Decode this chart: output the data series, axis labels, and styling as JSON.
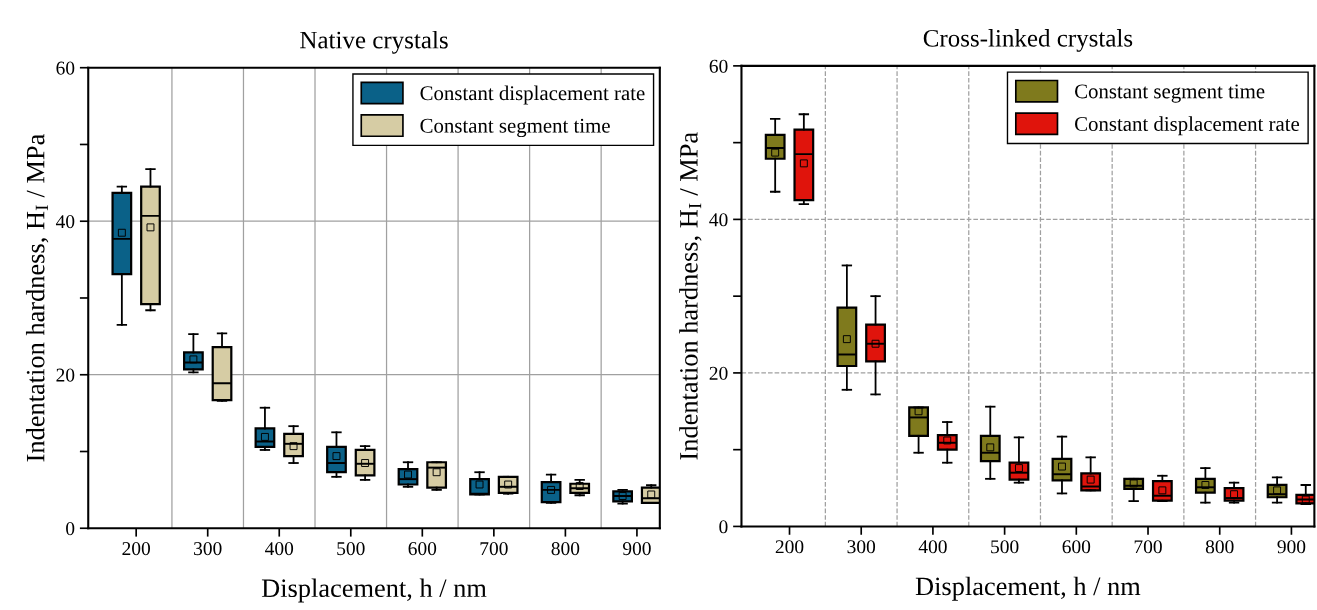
{
  "chart_data": [
    {
      "type": "box",
      "title": "Native crystals",
      "xlabel": "Displacement, h / nm",
      "ylabel": "Indentation hardness, H$_{I}$ / MPa",
      "categories": [
        "200",
        "300",
        "400",
        "500",
        "600",
        "700",
        "800",
        "900"
      ],
      "ylim": [
        0,
        60
      ],
      "yticks": [
        0,
        {
          "value": 10,
          "label": null
        },
        20,
        {
          "value": 30,
          "label": null
        },
        40,
        {
          "value": 50,
          "label": null
        },
        60
      ],
      "grid": true,
      "legend": "top right",
      "series": [
        {
          "name": "Constant displacement rate",
          "color": "#0a6188",
          "boxes": [
            {
              "low": 26.5,
              "q1": 33.1,
              "median": 37.7,
              "q3": 43.7,
              "high": 44.5,
              "mean": 38.5
            },
            {
              "low": 20.3,
              "q1": 20.7,
              "median": 21.6,
              "q3": 22.9,
              "high": 25.3,
              "mean": 22.0
            },
            {
              "low": 10.2,
              "q1": 10.6,
              "median": 11.3,
              "q3": 13.0,
              "high": 15.7,
              "mean": 11.9
            },
            {
              "low": 6.7,
              "q1": 7.3,
              "median": 8.5,
              "q3": 10.6,
              "high": 12.5,
              "mean": 9.4
            },
            {
              "low": 5.4,
              "q1": 5.7,
              "median": 6.4,
              "q3": 7.7,
              "high": 8.6,
              "mean": 7.0
            },
            {
              "low": 4.4,
              "q1": 4.4,
              "median": 4.5,
              "q3": 6.4,
              "high": 7.3,
              "mean": 5.7
            },
            {
              "low": 3.3,
              "q1": 3.4,
              "median": 5.0,
              "q3": 6.0,
              "high": 7.0,
              "mean": 5.0
            },
            {
              "low": 3.2,
              "q1": 3.5,
              "median": 4.2,
              "q3": 4.8,
              "high": 5.0,
              "mean": 4.2
            }
          ]
        },
        {
          "name": "Constant segment time",
          "color": "#d6cca4",
          "boxes": [
            {
              "low": 28.4,
              "q1": 29.2,
              "median": 40.7,
              "q3": 44.5,
              "high": 46.8,
              "mean": 39.2
            },
            {
              "low": 16.6,
              "q1": 16.7,
              "median": 18.9,
              "q3": 23.6,
              "high": 25.4
            },
            {
              "low": 8.5,
              "q1": 9.4,
              "median": 11.0,
              "q3": 12.3,
              "high": 13.3,
              "mean": 10.7
            },
            {
              "low": 6.3,
              "q1": 6.9,
              "median": 8.4,
              "q3": 10.2,
              "high": 10.7,
              "mean": 8.5
            },
            {
              "low": 5.0,
              "q1": 5.3,
              "median": 7.9,
              "q3": 8.6,
              "high": 8.6,
              "mean": 7.3
            },
            {
              "low": 4.5,
              "q1": 4.6,
              "median": 5.4,
              "q3": 6.7,
              "high": 6.7,
              "mean": 5.7
            },
            {
              "low": 4.3,
              "q1": 4.6,
              "median": 5.2,
              "q3": 5.8,
              "high": 6.3,
              "mean": 5.5
            },
            {
              "low": 3.3,
              "q1": 3.3,
              "median": 3.9,
              "q3": 5.3,
              "high": 5.6,
              "mean": 4.4
            }
          ]
        }
      ]
    },
    {
      "type": "box",
      "title": "Cross-linked crystals",
      "xlabel": "Displacement, h / nm",
      "ylabel": "Indentation hardness, H$_{I}$ / MPa",
      "categories": [
        "200",
        "300",
        "400",
        "500",
        "600",
        "700",
        "800",
        "900"
      ],
      "ylim": [
        0,
        60
      ],
      "yticks": [
        0,
        {
          "value": 10,
          "label": null
        },
        20,
        {
          "value": 30,
          "label": null
        },
        40,
        {
          "value": 50,
          "label": null
        },
        60
      ],
      "grid": true,
      "line_style": "dashed",
      "legend": "top right",
      "series": [
        {
          "name": "Constant segment time",
          "color": "#7f7a1d",
          "boxes": [
            {
              "low": 43.6,
              "q1": 47.9,
              "median": 49.3,
              "q3": 51.0,
              "high": 53.1,
              "mean": 48.7
            },
            {
              "low": 17.8,
              "q1": 20.9,
              "median": 22.4,
              "q3": 28.5,
              "high": 34.0,
              "mean": 24.4
            },
            {
              "low": 9.6,
              "q1": 11.8,
              "median": 14.2,
              "q3": 15.5,
              "high": 15.5,
              "mean": 15.0
            },
            {
              "low": 6.2,
              "q1": 8.5,
              "median": 9.6,
              "q3": 11.8,
              "high": 15.6,
              "mean": 10.3
            },
            {
              "low": 4.3,
              "q1": 6.0,
              "median": 6.8,
              "q3": 8.8,
              "high": 11.7,
              "mean": 7.8
            },
            {
              "low": 3.3,
              "q1": 4.9,
              "median": 5.3,
              "q3": 6.2,
              "high": 6.2,
              "mean": 5.6
            },
            {
              "low": 3.1,
              "q1": 4.4,
              "median": 5.1,
              "q3": 6.2,
              "high": 7.6,
              "mean": 5.4
            },
            {
              "low": 3.1,
              "q1": 3.8,
              "median": 4.2,
              "q3": 5.4,
              "high": 6.4,
              "mean": 4.7
            }
          ]
        },
        {
          "name": "Constant displacement rate",
          "color": "#e0140c",
          "boxes": [
            {
              "low": 42.0,
              "q1": 42.5,
              "median": 48.5,
              "q3": 51.7,
              "high": 53.7,
              "mean": 47.3
            },
            {
              "low": 17.2,
              "q1": 21.5,
              "median": 23.8,
              "q3": 26.3,
              "high": 30.0,
              "mean": 23.8
            },
            {
              "low": 8.3,
              "q1": 10.0,
              "median": 10.9,
              "q3": 11.9,
              "high": 13.6,
              "mean": 11.2
            },
            {
              "low": 5.7,
              "q1": 6.1,
              "median": 7.0,
              "q3": 8.3,
              "high": 11.6,
              "mean": 7.6
            },
            {
              "low": 4.7,
              "q1": 4.7,
              "median": 5.2,
              "q3": 6.9,
              "high": 9.0,
              "mean": 6.1
            },
            {
              "low": 3.3,
              "q1": 3.35,
              "median": 4.0,
              "q3": 5.9,
              "high": 6.6,
              "mean": 4.7
            },
            {
              "low": 3.1,
              "q1": 3.35,
              "median": 3.7,
              "q3": 5.0,
              "high": 5.7,
              "mean": 4.2
            },
            {
              "low": 2.9,
              "q1": 3.0,
              "median": 3.5,
              "q3": 4.1,
              "high": 5.4,
              "mean": 3.5
            }
          ]
        }
      ]
    }
  ]
}
